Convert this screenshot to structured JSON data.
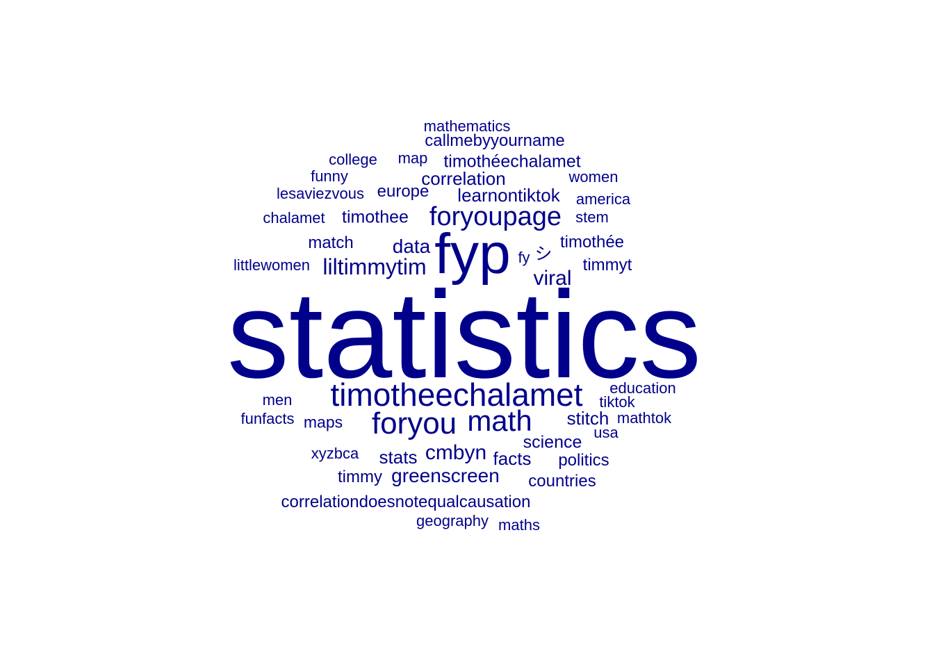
{
  "wordcloud": {
    "color": "#00008B",
    "words": [
      {
        "text": "statistics",
        "weight": 1.0
      },
      {
        "text": "fyp",
        "weight": 0.5
      },
      {
        "text": "timotheechalamet",
        "weight": 0.25
      },
      {
        "text": "foryou",
        "weight": 0.23
      },
      {
        "text": "math",
        "weight": 0.23
      },
      {
        "text": "foryoupage",
        "weight": 0.21
      },
      {
        "text": "liltimmytim",
        "weight": 0.17
      },
      {
        "text": "viral",
        "weight": 0.15
      },
      {
        "text": "cmbyn",
        "weight": 0.15
      },
      {
        "text": "data",
        "weight": 0.14
      },
      {
        "text": "greenscreen",
        "weight": 0.14
      },
      {
        "text": "stats",
        "weight": 0.13
      },
      {
        "text": "facts",
        "weight": 0.13
      },
      {
        "text": "learnontiktok",
        "weight": 0.13
      },
      {
        "text": "stitch",
        "weight": 0.12
      },
      {
        "text": "correlation",
        "weight": 0.12
      },
      {
        "text": "science",
        "weight": 0.12
      },
      {
        "text": "timothee",
        "weight": 0.12
      },
      {
        "text": "timothéechalamet",
        "weight": 0.12
      },
      {
        "text": "シ",
        "weight": 0.12
      },
      {
        "text": "correlationdoesnotequalcausation",
        "weight": 0.11
      },
      {
        "text": "callmebyyourname",
        "weight": 0.11
      },
      {
        "text": "europe",
        "weight": 0.11
      },
      {
        "text": "match",
        "weight": 0.11
      },
      {
        "text": "timothée",
        "weight": 0.11
      },
      {
        "text": "timmyt",
        "weight": 0.11
      },
      {
        "text": "timmy",
        "weight": 0.11
      },
      {
        "text": "politics",
        "weight": 0.11
      },
      {
        "text": "countries",
        "weight": 0.11
      },
      {
        "text": "maps",
        "weight": 0.1
      },
      {
        "text": "geography",
        "weight": 0.1
      },
      {
        "text": "college",
        "weight": 0.1
      },
      {
        "text": "map",
        "weight": 0.1
      },
      {
        "text": "mathematics",
        "weight": 0.1
      },
      {
        "text": "women",
        "weight": 0.1
      },
      {
        "text": "america",
        "weight": 0.1
      },
      {
        "text": "stem",
        "weight": 0.1
      },
      {
        "text": "lesaviezvous",
        "weight": 0.1
      },
      {
        "text": "funny",
        "weight": 0.1
      },
      {
        "text": "chalamet",
        "weight": 0.1
      },
      {
        "text": "littlewomen",
        "weight": 0.1
      },
      {
        "text": "fy",
        "weight": 0.1
      },
      {
        "text": "education",
        "weight": 0.1
      },
      {
        "text": "tiktok",
        "weight": 0.1
      },
      {
        "text": "mathtok",
        "weight": 0.1
      },
      {
        "text": "usa",
        "weight": 0.1
      },
      {
        "text": "men",
        "weight": 0.1
      },
      {
        "text": "funfacts",
        "weight": 0.1
      },
      {
        "text": "xyzbca",
        "weight": 0.1
      },
      {
        "text": "maths",
        "weight": 0.1
      }
    ]
  }
}
